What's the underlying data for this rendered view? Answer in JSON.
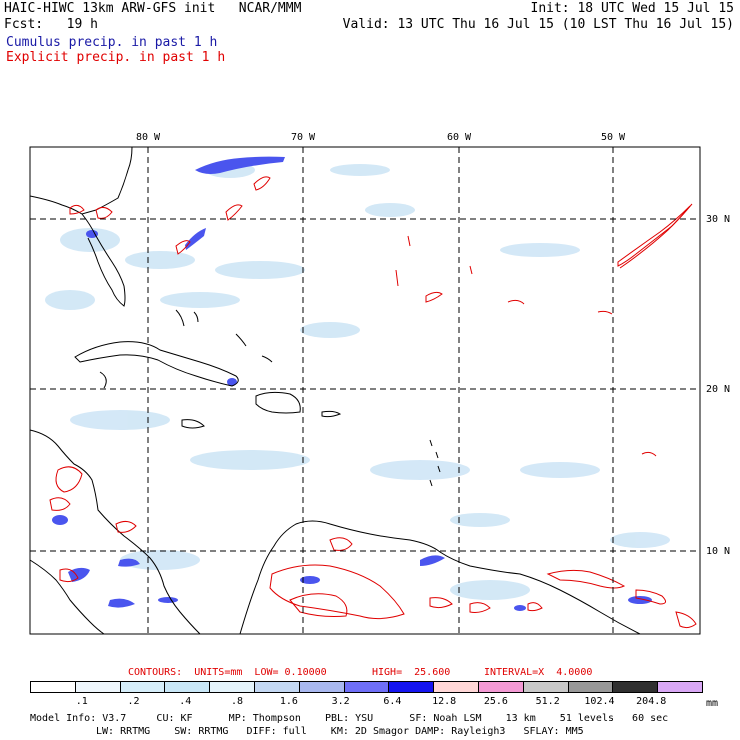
{
  "header": {
    "line1_left": "HAIC-HIWC 13km ARW-GFS init   NCAR/MMM",
    "line1_right": "Init: 18 UTC Wed 15 Jul 15",
    "line2_left": "Fcst:   19 h",
    "line2_right": "Valid: 13 UTC Thu 16 Jul 15 (10 LST Thu 16 Jul 15)",
    "legend_cumulus": "Cumulus precip. in past 1 h",
    "legend_explicit": "Explicit precip. in past 1 h"
  },
  "map": {
    "lon_labels": [
      "80 W",
      "70 W",
      "60 W",
      "50 W"
    ],
    "lat_labels": [
      "30 N",
      "20 N",
      "10 N"
    ],
    "cumulus_color": "#3344ee",
    "explicit_color": "#e00000",
    "coast_color": "#000000"
  },
  "contour_info": {
    "contours": "CONTOURS:  UNITS=mm  LOW= 0.10000",
    "high": "HIGH=  25.600",
    "interval": "INTERVAL=X  4.0000"
  },
  "color_scale": {
    "colors": [
      "#ffffff",
      "#eef6fc",
      "#d6eefa",
      "#c9e7f7",
      "#e4f3fb",
      "#c4d8f3",
      "#a9b8ef",
      "#6f6ff7",
      "#1414f0",
      "#ffd7d7",
      "#f39ad4",
      "#c8c8c8",
      "#989898",
      "#303030",
      "#d9a8f5"
    ],
    "ticks": [
      ".1",
      ".2",
      ".4",
      ".8",
      "1.6",
      "3.2",
      "6.4",
      "12.8",
      "25.6",
      "51.2",
      "102.4",
      "204.8"
    ],
    "unit": "mm"
  },
  "footer": {
    "line1": "Model Info: V3.7     CU: KF      MP: Thompson    PBL: YSU      SF: Noah LSM    13 km    51 levels   60 sec",
    "line2": "LW: RRTMG    SW: RRTMG   DIFF: full    KM: 2D Smagor DAMP: Rayleigh3   SFLAY: MM5"
  }
}
